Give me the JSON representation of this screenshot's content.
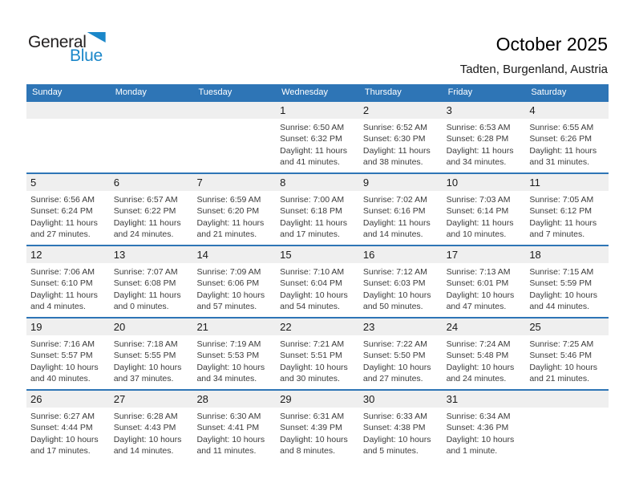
{
  "logo": {
    "text_general": "General",
    "text_blue": "Blue",
    "triangle_color": "#1b87c9"
  },
  "header": {
    "title": "October 2025",
    "subtitle": "Tadten, Burgenland, Austria"
  },
  "theme": {
    "header_blue": "#2e75b6",
    "band_gray": "#efefef"
  },
  "calendar": {
    "weekdays": [
      "Sunday",
      "Monday",
      "Tuesday",
      "Wednesday",
      "Thursday",
      "Friday",
      "Saturday"
    ],
    "weeks": [
      [
        {
          "day": ""
        },
        {
          "day": ""
        },
        {
          "day": ""
        },
        {
          "day": "1",
          "sunrise": "Sunrise: 6:50 AM",
          "sunset": "Sunset: 6:32 PM",
          "daylight": "Daylight: 11 hours and 41 minutes."
        },
        {
          "day": "2",
          "sunrise": "Sunrise: 6:52 AM",
          "sunset": "Sunset: 6:30 PM",
          "daylight": "Daylight: 11 hours and 38 minutes."
        },
        {
          "day": "3",
          "sunrise": "Sunrise: 6:53 AM",
          "sunset": "Sunset: 6:28 PM",
          "daylight": "Daylight: 11 hours and 34 minutes."
        },
        {
          "day": "4",
          "sunrise": "Sunrise: 6:55 AM",
          "sunset": "Sunset: 6:26 PM",
          "daylight": "Daylight: 11 hours and 31 minutes."
        }
      ],
      [
        {
          "day": "5",
          "sunrise": "Sunrise: 6:56 AM",
          "sunset": "Sunset: 6:24 PM",
          "daylight": "Daylight: 11 hours and 27 minutes."
        },
        {
          "day": "6",
          "sunrise": "Sunrise: 6:57 AM",
          "sunset": "Sunset: 6:22 PM",
          "daylight": "Daylight: 11 hours and 24 minutes."
        },
        {
          "day": "7",
          "sunrise": "Sunrise: 6:59 AM",
          "sunset": "Sunset: 6:20 PM",
          "daylight": "Daylight: 11 hours and 21 minutes."
        },
        {
          "day": "8",
          "sunrise": "Sunrise: 7:00 AM",
          "sunset": "Sunset: 6:18 PM",
          "daylight": "Daylight: 11 hours and 17 minutes."
        },
        {
          "day": "9",
          "sunrise": "Sunrise: 7:02 AM",
          "sunset": "Sunset: 6:16 PM",
          "daylight": "Daylight: 11 hours and 14 minutes."
        },
        {
          "day": "10",
          "sunrise": "Sunrise: 7:03 AM",
          "sunset": "Sunset: 6:14 PM",
          "daylight": "Daylight: 11 hours and 10 minutes."
        },
        {
          "day": "11",
          "sunrise": "Sunrise: 7:05 AM",
          "sunset": "Sunset: 6:12 PM",
          "daylight": "Daylight: 11 hours and 7 minutes."
        }
      ],
      [
        {
          "day": "12",
          "sunrise": "Sunrise: 7:06 AM",
          "sunset": "Sunset: 6:10 PM",
          "daylight": "Daylight: 11 hours and 4 minutes."
        },
        {
          "day": "13",
          "sunrise": "Sunrise: 7:07 AM",
          "sunset": "Sunset: 6:08 PM",
          "daylight": "Daylight: 11 hours and 0 minutes."
        },
        {
          "day": "14",
          "sunrise": "Sunrise: 7:09 AM",
          "sunset": "Sunset: 6:06 PM",
          "daylight": "Daylight: 10 hours and 57 minutes."
        },
        {
          "day": "15",
          "sunrise": "Sunrise: 7:10 AM",
          "sunset": "Sunset: 6:04 PM",
          "daylight": "Daylight: 10 hours and 54 minutes."
        },
        {
          "day": "16",
          "sunrise": "Sunrise: 7:12 AM",
          "sunset": "Sunset: 6:03 PM",
          "daylight": "Daylight: 10 hours and 50 minutes."
        },
        {
          "day": "17",
          "sunrise": "Sunrise: 7:13 AM",
          "sunset": "Sunset: 6:01 PM",
          "daylight": "Daylight: 10 hours and 47 minutes."
        },
        {
          "day": "18",
          "sunrise": "Sunrise: 7:15 AM",
          "sunset": "Sunset: 5:59 PM",
          "daylight": "Daylight: 10 hours and 44 minutes."
        }
      ],
      [
        {
          "day": "19",
          "sunrise": "Sunrise: 7:16 AM",
          "sunset": "Sunset: 5:57 PM",
          "daylight": "Daylight: 10 hours and 40 minutes."
        },
        {
          "day": "20",
          "sunrise": "Sunrise: 7:18 AM",
          "sunset": "Sunset: 5:55 PM",
          "daylight": "Daylight: 10 hours and 37 minutes."
        },
        {
          "day": "21",
          "sunrise": "Sunrise: 7:19 AM",
          "sunset": "Sunset: 5:53 PM",
          "daylight": "Daylight: 10 hours and 34 minutes."
        },
        {
          "day": "22",
          "sunrise": "Sunrise: 7:21 AM",
          "sunset": "Sunset: 5:51 PM",
          "daylight": "Daylight: 10 hours and 30 minutes."
        },
        {
          "day": "23",
          "sunrise": "Sunrise: 7:22 AM",
          "sunset": "Sunset: 5:50 PM",
          "daylight": "Daylight: 10 hours and 27 minutes."
        },
        {
          "day": "24",
          "sunrise": "Sunrise: 7:24 AM",
          "sunset": "Sunset: 5:48 PM",
          "daylight": "Daylight: 10 hours and 24 minutes."
        },
        {
          "day": "25",
          "sunrise": "Sunrise: 7:25 AM",
          "sunset": "Sunset: 5:46 PM",
          "daylight": "Daylight: 10 hours and 21 minutes."
        }
      ],
      [
        {
          "day": "26",
          "sunrise": "Sunrise: 6:27 AM",
          "sunset": "Sunset: 4:44 PM",
          "daylight": "Daylight: 10 hours and 17 minutes."
        },
        {
          "day": "27",
          "sunrise": "Sunrise: 6:28 AM",
          "sunset": "Sunset: 4:43 PM",
          "daylight": "Daylight: 10 hours and 14 minutes."
        },
        {
          "day": "28",
          "sunrise": "Sunrise: 6:30 AM",
          "sunset": "Sunset: 4:41 PM",
          "daylight": "Daylight: 10 hours and 11 minutes."
        },
        {
          "day": "29",
          "sunrise": "Sunrise: 6:31 AM",
          "sunset": "Sunset: 4:39 PM",
          "daylight": "Daylight: 10 hours and 8 minutes."
        },
        {
          "day": "30",
          "sunrise": "Sunrise: 6:33 AM",
          "sunset": "Sunset: 4:38 PM",
          "daylight": "Daylight: 10 hours and 5 minutes."
        },
        {
          "day": "31",
          "sunrise": "Sunrise: 6:34 AM",
          "sunset": "Sunset: 4:36 PM",
          "daylight": "Daylight: 10 hours and 1 minute."
        },
        {
          "day": ""
        }
      ]
    ]
  }
}
